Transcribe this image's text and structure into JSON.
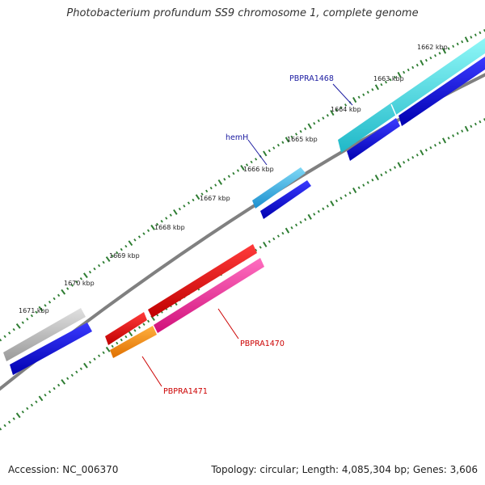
{
  "title": "Photobacterium profundum SS9 chromosome 1, complete genome",
  "footer": {
    "accession": "Accession: NC_006370",
    "stats": "Topology: circular; Length: 4,085,304 bp; Genes: 3,606"
  },
  "colors": {
    "backbone": "#808080",
    "tick": "#2e7d32",
    "label_blue": "#1a1aa0",
    "label_red": "#cc0000"
  },
  "scale": {
    "ticks": [
      {
        "label": "1662 kbp",
        "kbp": 1662
      },
      {
        "label": "1663 kbp",
        "kbp": 1663
      },
      {
        "label": "1664 kbp",
        "kbp": 1664
      },
      {
        "label": "1665 kbp",
        "kbp": 1665
      },
      {
        "label": "1666 kbp",
        "kbp": 1666
      },
      {
        "label": "1667 kbp",
        "kbp": 1667
      },
      {
        "label": "1668 kbp",
        "kbp": 1668
      },
      {
        "label": "1669 kbp",
        "kbp": 1669
      },
      {
        "label": "1670 kbp",
        "kbp": 1670
      },
      {
        "label": "1671 kbp",
        "kbp": 1671
      }
    ]
  },
  "gene_labels": [
    {
      "name": "PBPRA1468",
      "color": "#1a1aa0"
    },
    {
      "name": "hemH",
      "color": "#1a1aa0"
    },
    {
      "name": "PBPRA1470",
      "color": "#cc0000"
    },
    {
      "name": "PBPRA1471",
      "color": "#cc0000"
    }
  ]
}
